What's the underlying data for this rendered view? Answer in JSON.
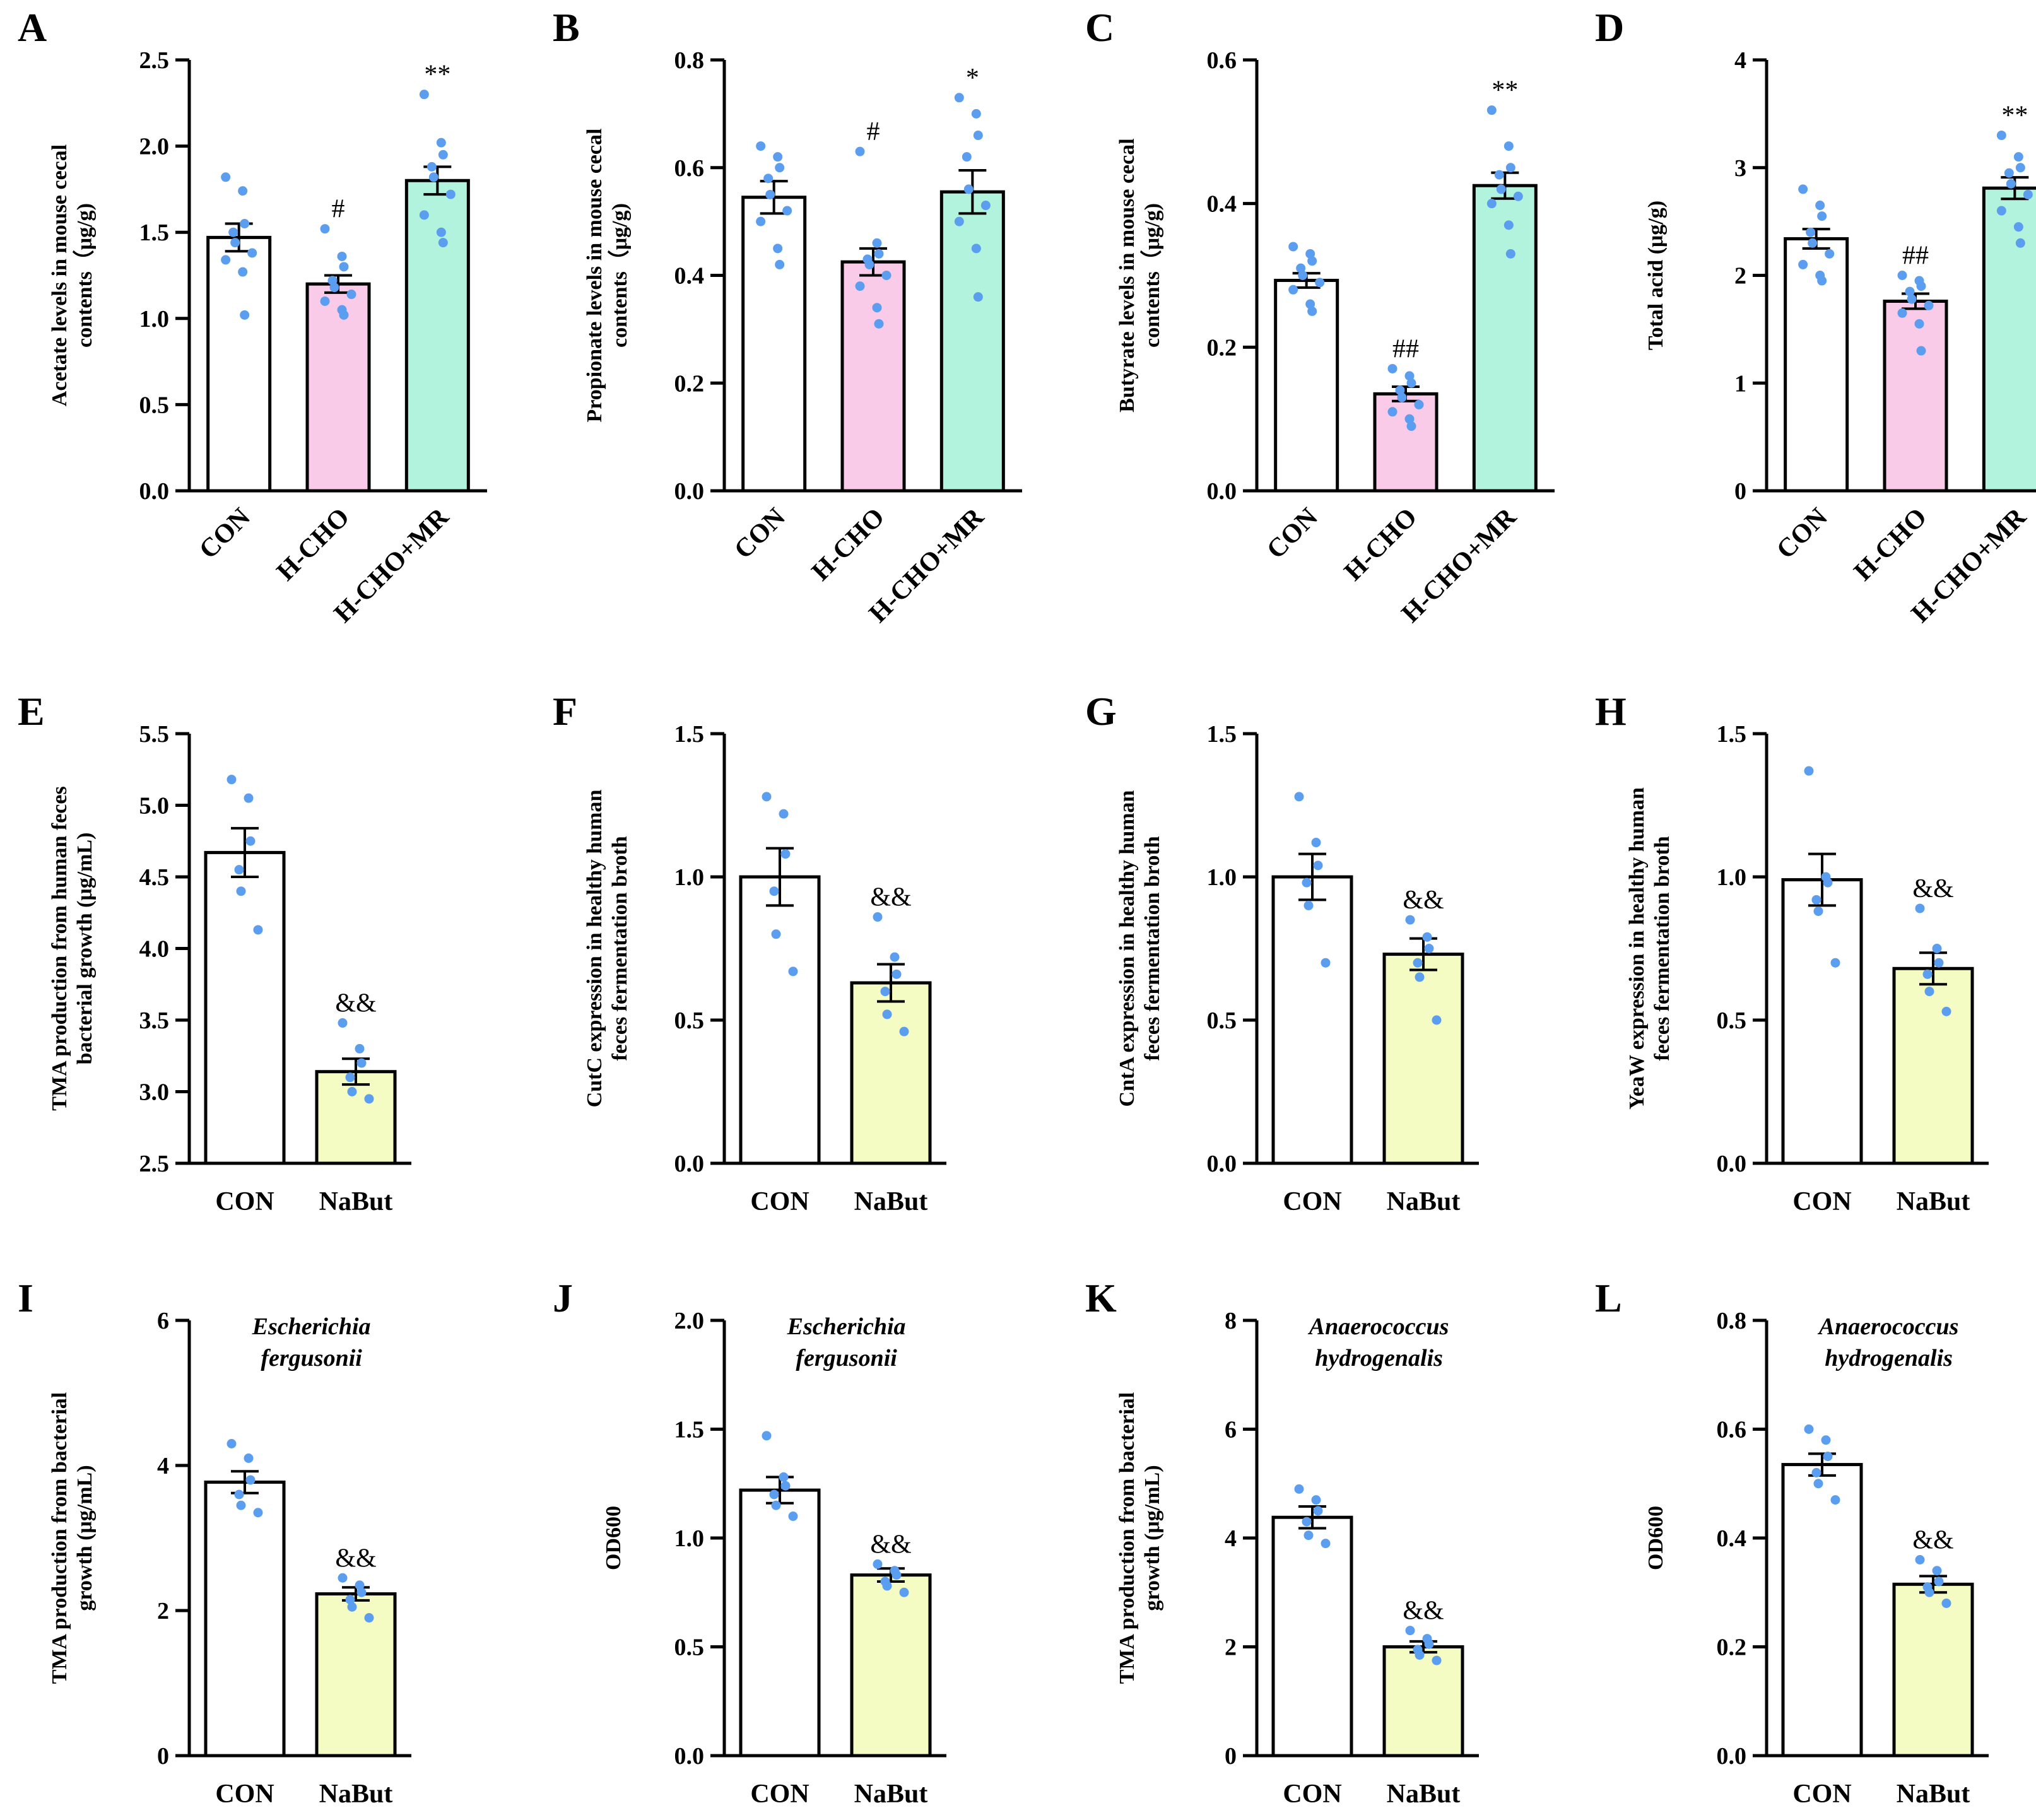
{
  "colors": {
    "CON": "#ffffff",
    "H-CHO": "#f9cbe9",
    "H-CHO+MR": "#b2f3de",
    "NaBut": "#f4fcc3",
    "dots": "#5b9def",
    "axis": "#000000"
  },
  "chart_data": [
    {
      "letter": "A",
      "type": "bar",
      "categories": [
        "CON",
        "H-CHO",
        "H-CHO+MR"
      ],
      "values": [
        1.47,
        1.2,
        1.8
      ],
      "errors": [
        0.08,
        0.05,
        0.08
      ],
      "significance": [
        "",
        "#",
        "**"
      ],
      "points": [
        [
          1.82,
          1.74,
          1.55,
          1.5,
          1.44,
          1.38,
          1.34,
          1.27,
          1.02
        ],
        [
          1.52,
          1.36,
          1.3,
          1.22,
          1.18,
          1.14,
          1.1,
          1.05,
          1.02
        ],
        [
          2.3,
          2.02,
          1.95,
          1.88,
          1.82,
          1.72,
          1.6,
          1.5,
          1.44
        ]
      ],
      "ylabel_lines": [
        "Acetate levels in mouse cecal",
        "contents（μg/g)"
      ],
      "ylim": [
        0,
        2.5
      ],
      "yticks": [
        "0.0",
        "0.5",
        "1.0",
        "1.5",
        "2.0",
        "2.5"
      ],
      "annotation": []
    },
    {
      "letter": "B",
      "type": "bar",
      "categories": [
        "CON",
        "H-CHO",
        "H-CHO+MR"
      ],
      "values": [
        0.545,
        0.425,
        0.555
      ],
      "errors": [
        0.03,
        0.025,
        0.04
      ],
      "significance": [
        "",
        "#",
        "*"
      ],
      "points": [
        [
          0.64,
          0.62,
          0.6,
          0.58,
          0.55,
          0.52,
          0.5,
          0.45,
          0.42
        ],
        [
          0.63,
          0.46,
          0.44,
          0.43,
          0.42,
          0.4,
          0.38,
          0.34,
          0.31
        ],
        [
          0.73,
          0.7,
          0.66,
          0.62,
          0.56,
          0.53,
          0.5,
          0.45,
          0.36
        ]
      ],
      "ylabel_lines": [
        "Propionate levels in mouse cecal",
        "contents（μg/g)"
      ],
      "ylim": [
        0,
        0.8
      ],
      "yticks": [
        "0.0",
        "0.2",
        "0.4",
        "0.6",
        "0.8"
      ],
      "annotation": []
    },
    {
      "letter": "C",
      "type": "bar",
      "categories": [
        "CON",
        "H-CHO",
        "H-CHO+MR"
      ],
      "values": [
        0.293,
        0.135,
        0.425
      ],
      "errors": [
        0.01,
        0.01,
        0.018
      ],
      "significance": [
        "",
        "##",
        "**"
      ],
      "points": [
        [
          0.34,
          0.33,
          0.32,
          0.31,
          0.3,
          0.29,
          0.28,
          0.26,
          0.25
        ],
        [
          0.17,
          0.16,
          0.15,
          0.14,
          0.13,
          0.12,
          0.11,
          0.1,
          0.09
        ],
        [
          0.53,
          0.48,
          0.45,
          0.44,
          0.42,
          0.41,
          0.4,
          0.37,
          0.33
        ]
      ],
      "ylabel_lines": [
        "Butyrate levels in mouse cecal",
        "contents（μg/g)"
      ],
      "ylim": [
        0,
        0.6
      ],
      "yticks": [
        "0.0",
        "0.2",
        "0.4",
        "0.6"
      ],
      "annotation": []
    },
    {
      "letter": "D",
      "type": "bar",
      "categories": [
        "CON",
        "H-CHO",
        "H-CHO+MR"
      ],
      "values": [
        2.34,
        1.76,
        2.81
      ],
      "errors": [
        0.09,
        0.07,
        0.1
      ],
      "significance": [
        "",
        "##",
        "**"
      ],
      "points": [
        [
          2.8,
          2.65,
          2.55,
          2.4,
          2.3,
          2.2,
          2.1,
          2.0,
          1.95
        ],
        [
          2.0,
          1.95,
          1.9,
          1.85,
          1.78,
          1.72,
          1.65,
          1.55,
          1.3
        ],
        [
          3.3,
          3.1,
          3.0,
          2.95,
          2.85,
          2.75,
          2.6,
          2.45,
          2.3
        ]
      ],
      "ylabel_lines": [
        "Total acid (μg/g)"
      ],
      "ylim": [
        0,
        4
      ],
      "yticks": [
        "0",
        "1",
        "2",
        "3",
        "4"
      ],
      "annotation": []
    },
    {
      "letter": "E",
      "type": "bar",
      "categories": [
        "CON",
        "NaBut"
      ],
      "values": [
        4.67,
        3.14
      ],
      "errors": [
        0.17,
        0.09
      ],
      "significance": [
        "",
        "&&"
      ],
      "points": [
        [
          5.18,
          5.05,
          4.75,
          4.55,
          4.4,
          4.13
        ],
        [
          3.48,
          3.3,
          3.2,
          3.1,
          3.0,
          2.95
        ]
      ],
      "ylabel_lines": [
        "TMA production from human feces",
        "bacterial growth (μg/mL)"
      ],
      "ylim": [
        2.5,
        5.5
      ],
      "yticks": [
        "2.5",
        "3.0",
        "3.5",
        "4.0",
        "4.5",
        "5.0",
        "5.5"
      ],
      "annotation": []
    },
    {
      "letter": "F",
      "type": "bar",
      "categories": [
        "CON",
        "NaBut"
      ],
      "values": [
        1.0,
        0.63
      ],
      "errors": [
        0.1,
        0.065
      ],
      "significance": [
        "",
        "&&"
      ],
      "points": [
        [
          1.28,
          1.22,
          1.08,
          0.95,
          0.8,
          0.67
        ],
        [
          0.86,
          0.72,
          0.66,
          0.6,
          0.52,
          0.46
        ]
      ],
      "ylabel_lines": [
        "CutC expression in healthy human",
        "feces fermentation broth"
      ],
      "ylim": [
        0,
        1.5
      ],
      "yticks": [
        "0.0",
        "0.5",
        "1.0",
        "1.5"
      ],
      "annotation": []
    },
    {
      "letter": "G",
      "type": "bar",
      "categories": [
        "CON",
        "NaBut"
      ],
      "values": [
        1.0,
        0.73
      ],
      "errors": [
        0.08,
        0.055
      ],
      "significance": [
        "",
        "&&"
      ],
      "points": [
        [
          1.28,
          1.12,
          1.04,
          0.98,
          0.9,
          0.7
        ],
        [
          0.85,
          0.79,
          0.75,
          0.7,
          0.65,
          0.5
        ]
      ],
      "ylabel_lines": [
        "CntA expression in healthy human",
        "feces fermentation broth"
      ],
      "ylim": [
        0,
        1.5
      ],
      "yticks": [
        "0.0",
        "0.5",
        "1.0",
        "1.5"
      ],
      "annotation": []
    },
    {
      "letter": "H",
      "type": "bar",
      "categories": [
        "CON",
        "NaBut"
      ],
      "values": [
        0.99,
        0.68
      ],
      "errors": [
        0.09,
        0.055
      ],
      "significance": [
        "",
        "&&"
      ],
      "points": [
        [
          1.37,
          1.0,
          0.98,
          0.92,
          0.88,
          0.7
        ],
        [
          0.89,
          0.75,
          0.7,
          0.66,
          0.6,
          0.53
        ]
      ],
      "ylabel_lines": [
        "YeaW expression in healthy human",
        "feces fermentation broth"
      ],
      "ylim": [
        0,
        1.5
      ],
      "yticks": [
        "0.0",
        "0.5",
        "1.0",
        "1.5"
      ],
      "annotation": []
    },
    {
      "letter": "I",
      "type": "bar",
      "categories": [
        "CON",
        "NaBut"
      ],
      "values": [
        3.77,
        2.23
      ],
      "errors": [
        0.15,
        0.09
      ],
      "significance": [
        "",
        "&&"
      ],
      "points": [
        [
          4.3,
          4.1,
          3.8,
          3.6,
          3.45,
          3.35
        ],
        [
          2.45,
          2.35,
          2.25,
          2.15,
          2.05,
          1.9
        ]
      ],
      "ylabel_lines": [
        "TMA production from bacterial",
        "growth (μg/mL)"
      ],
      "ylim": [
        0,
        6
      ],
      "yticks": [
        "0",
        "2",
        "4",
        "6"
      ],
      "annotation": [
        "Escherichia",
        "fergusonii"
      ]
    },
    {
      "letter": "J",
      "type": "bar",
      "categories": [
        "CON",
        "NaBut"
      ],
      "values": [
        1.22,
        0.83
      ],
      "errors": [
        0.06,
        0.03
      ],
      "significance": [
        "",
        "&&"
      ],
      "points": [
        [
          1.47,
          1.28,
          1.24,
          1.2,
          1.15,
          1.1
        ],
        [
          0.88,
          0.85,
          0.83,
          0.8,
          0.78,
          0.75
        ]
      ],
      "ylabel_lines": [
        "OD600"
      ],
      "ylim": [
        0,
        2.0
      ],
      "yticks": [
        "0.0",
        "0.5",
        "1.0",
        "1.5",
        "2.0"
      ],
      "annotation": [
        "Escherichia",
        "fergusonii"
      ]
    },
    {
      "letter": "K",
      "type": "bar",
      "categories": [
        "CON",
        "NaBut"
      ],
      "values": [
        4.38,
        2.0
      ],
      "errors": [
        0.2,
        0.1
      ],
      "significance": [
        "",
        "&&"
      ],
      "points": [
        [
          4.9,
          4.7,
          4.5,
          4.3,
          4.05,
          3.9
        ],
        [
          2.3,
          2.15,
          2.05,
          1.95,
          1.85,
          1.75
        ]
      ],
      "ylabel_lines": [
        "TMA production from bacterial",
        "growth (μg/mL)"
      ],
      "ylim": [
        0,
        8
      ],
      "yticks": [
        "0",
        "2",
        "4",
        "6",
        "8"
      ],
      "annotation": [
        "Anaerococcus",
        "hydrogenalis"
      ]
    },
    {
      "letter": "L",
      "type": "bar",
      "categories": [
        "CON",
        "NaBut"
      ],
      "values": [
        0.535,
        0.315
      ],
      "errors": [
        0.02,
        0.015
      ],
      "significance": [
        "",
        "&&"
      ],
      "points": [
        [
          0.6,
          0.58,
          0.55,
          0.52,
          0.5,
          0.47
        ],
        [
          0.36,
          0.34,
          0.32,
          0.31,
          0.3,
          0.28
        ]
      ],
      "ylabel_lines": [
        "OD600"
      ],
      "ylim": [
        0,
        0.8
      ],
      "yticks": [
        "0.0",
        "0.2",
        "0.4",
        "0.6",
        "0.8"
      ],
      "annotation": [
        "Anaerococcus",
        "hydrogenalis"
      ]
    }
  ]
}
